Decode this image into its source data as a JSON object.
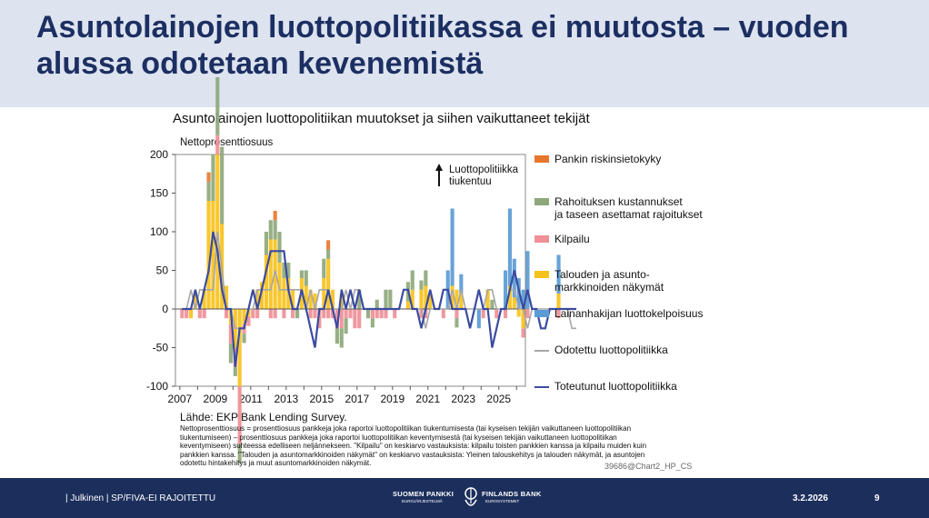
{
  "slide": {
    "title": "Asuntolainojen luottopolitiikassa ei muutosta – vuoden alussa odotetaan kevenemistä"
  },
  "chart_data": {
    "type": "bar",
    "title": "Asuntolainojen luottopolitiikan muutokset ja siihen vaikuttaneet tekijät",
    "ylabel": "Nettoprosenttiosuus",
    "ylim": [
      -100,
      200
    ],
    "yticks": [
      "200",
      "150",
      "100",
      "50",
      "0",
      "-50",
      "-100"
    ],
    "xticks": [
      "2007",
      "2009",
      "2011",
      "2013",
      "2015",
      "2017",
      "2019",
      "2021",
      "2023",
      "2025"
    ],
    "annotation": "Luottopolitiikka\ntiukentuu",
    "legend": [
      {
        "name": "Pankin riskinsietokyky",
        "color": "#e8772e",
        "kind": "bar"
      },
      {
        "name": "Rahoituksen kustannukset\n  ja taseen asettamat rajoitukset",
        "color": "#8ea87b",
        "kind": "bar"
      },
      {
        "name": "Kilpailu",
        "color": "#ef8f97",
        "kind": "bar"
      },
      {
        "name": "Talouden ja asunto-\nmarkkinoiden näkymät",
        "color": "#f8c21c",
        "kind": "bar"
      },
      {
        "name": "Lainanhakijan luottokelpoisuus",
        "color": "#5b9bd5",
        "kind": "bar"
      },
      {
        "name": "Odotettu luottopolitiikka",
        "color": "#a6a6a6",
        "kind": "line"
      },
      {
        "name": "Toteutunut luottopolitiikka",
        "color": "#3a4ba0",
        "kind": "line"
      }
    ],
    "x_start": 2007.0,
    "x_step": 0.25,
    "series": [
      {
        "name": "Talouden ja asunto-markkinoiden näkymät",
        "color": "#f8c21c",
        "values": [
          0,
          0,
          -12,
          20,
          0,
          25,
          140,
          140,
          200,
          110,
          30,
          -20,
          -50,
          -100,
          -20,
          -10,
          0,
          25,
          35,
          70,
          90,
          90,
          60,
          40,
          40,
          25,
          0,
          40,
          30,
          25,
          20,
          0,
          40,
          65,
          25,
          0,
          20,
          0,
          0,
          0,
          0,
          0,
          0,
          0,
          0,
          0,
          0,
          0,
          0,
          0,
          0,
          10,
          25,
          0,
          25,
          30,
          20,
          0,
          0,
          0,
          0,
          30,
          25,
          20,
          0,
          0,
          0,
          0,
          0,
          25,
          0,
          0,
          0,
          0,
          30,
          15,
          -10,
          -25,
          0,
          0,
          0,
          0,
          0,
          0,
          0,
          20,
          0,
          0,
          0,
          0
        ]
      },
      {
        "name": "Kilpailu",
        "color": "#ef8f97",
        "values": [
          -12,
          -12,
          0,
          0,
          -12,
          -12,
          0,
          0,
          25,
          0,
          -12,
          -25,
          -25,
          -75,
          -12,
          -12,
          -12,
          -12,
          0,
          0,
          -12,
          -12,
          0,
          -12,
          0,
          -12,
          0,
          0,
          0,
          -12,
          -12,
          -25,
          -12,
          -12,
          -12,
          -25,
          -25,
          -12,
          -12,
          -25,
          -25,
          0,
          0,
          -12,
          -12,
          -12,
          -12,
          0,
          -12,
          0,
          0,
          0,
          0,
          0,
          -12,
          -12,
          0,
          0,
          0,
          -12,
          0,
          0,
          -12,
          0,
          0,
          0,
          0,
          0,
          -12,
          0,
          0,
          -12,
          0,
          -12,
          0,
          0,
          0,
          -12,
          -12,
          0,
          0,
          0,
          0,
          0,
          0,
          -12,
          0,
          0,
          0,
          0
        ]
      },
      {
        "name": "Rahoituksen kustannukset ja taseen asettamat rajoitukset",
        "color": "#8ea87b",
        "values": [
          0,
          0,
          0,
          0,
          0,
          0,
          25,
          60,
          75,
          100,
          0,
          -25,
          -12,
          -25,
          -12,
          0,
          0,
          0,
          0,
          30,
          25,
          25,
          40,
          20,
          20,
          0,
          -12,
          10,
          20,
          0,
          0,
          0,
          25,
          12,
          0,
          -20,
          -25,
          -20,
          0,
          0,
          25,
          0,
          -12,
          -12,
          12,
          0,
          25,
          25,
          0,
          0,
          0,
          25,
          25,
          0,
          12,
          20,
          0,
          0,
          0,
          0,
          0,
          0,
          -12,
          0,
          0,
          0,
          0,
          0,
          0,
          0,
          12,
          0,
          0,
          0,
          0,
          0,
          0,
          0,
          0,
          0,
          0,
          0,
          0,
          0,
          0,
          0,
          0,
          0,
          0,
          0
        ]
      },
      {
        "name": "Lainanhakijan luottokelpoisuus",
        "color": "#5b9bd5",
        "values": [
          0,
          0,
          0,
          0,
          0,
          0,
          0,
          0,
          0,
          0,
          0,
          0,
          0,
          0,
          0,
          0,
          0,
          0,
          0,
          0,
          0,
          0,
          0,
          0,
          0,
          0,
          0,
          0,
          0,
          0,
          0,
          0,
          0,
          0,
          0,
          0,
          0,
          0,
          0,
          0,
          0,
          0,
          0,
          0,
          0,
          0,
          0,
          0,
          0,
          0,
          0,
          0,
          0,
          0,
          0,
          0,
          0,
          0,
          0,
          0,
          50,
          100,
          0,
          25,
          0,
          0,
          0,
          -25,
          0,
          0,
          0,
          0,
          0,
          50,
          100,
          50,
          40,
          25,
          75,
          0,
          0,
          0,
          0,
          0,
          0,
          50,
          0,
          0,
          0,
          0
        ]
      },
      {
        "name": "Pankin riskinsietokyky",
        "color": "#e8772e",
        "values": [
          0,
          0,
          0,
          0,
          0,
          0,
          12,
          0,
          0,
          0,
          0,
          0,
          0,
          0,
          0,
          0,
          0,
          0,
          0,
          0,
          0,
          12,
          0,
          0,
          0,
          0,
          0,
          0,
          0,
          0,
          0,
          0,
          0,
          12,
          0,
          0,
          0,
          0,
          0,
          0,
          0,
          0,
          0,
          0,
          0,
          0,
          0,
          0,
          0,
          0,
          0,
          0,
          0,
          0,
          0,
          0,
          0,
          0,
          0,
          0,
          0,
          0,
          0,
          0,
          0,
          0,
          0,
          0,
          0,
          0,
          0,
          0,
          0,
          0,
          0,
          0,
          0,
          0,
          0,
          0,
          0,
          0,
          0,
          0,
          0,
          0,
          0,
          0,
          0,
          0
        ]
      },
      {
        "name": "Odotettu luottopolitiikka",
        "color": "#a6a6a6",
        "values": [
          0,
          0,
          25,
          0,
          25,
          25,
          25,
          25,
          100,
          50,
          0,
          0,
          -25,
          -25,
          -25,
          0,
          0,
          25,
          25,
          25,
          25,
          50,
          25,
          25,
          25,
          25,
          25,
          25,
          0,
          25,
          0,
          25,
          25,
          25,
          0,
          0,
          0,
          25,
          0,
          25,
          25,
          0,
          0,
          0,
          0,
          0,
          0,
          0,
          0,
          0,
          25,
          25,
          0,
          0,
          0,
          -25,
          0,
          0,
          0,
          0,
          0,
          25,
          0,
          25,
          0,
          0,
          0,
          0,
          0,
          25,
          25,
          0,
          0,
          0,
          25,
          25,
          0,
          0,
          -25,
          0,
          0,
          0,
          0,
          0,
          0,
          0,
          0,
          0,
          -25,
          -25
        ]
      },
      {
        "name": "Toteutunut luottopolitiikka",
        "color": "#3a4ba0",
        "values": [
          0,
          0,
          0,
          25,
          0,
          25,
          50,
          100,
          75,
          25,
          0,
          0,
          -75,
          -25,
          -25,
          0,
          25,
          0,
          25,
          50,
          75,
          75,
          75,
          75,
          25,
          0,
          0,
          25,
          0,
          -25,
          -50,
          0,
          0,
          25,
          0,
          -25,
          25,
          0,
          25,
          0,
          25,
          0,
          0,
          0,
          0,
          0,
          0,
          0,
          0,
          0,
          25,
          25,
          0,
          0,
          -25,
          0,
          25,
          0,
          0,
          25,
          25,
          0,
          0,
          0,
          0,
          -25,
          0,
          25,
          0,
          0,
          -50,
          -25,
          0,
          0,
          25,
          50,
          25,
          0,
          25,
          0,
          0,
          -25,
          -25,
          0,
          0,
          0,
          0,
          0,
          0,
          0
        ]
      }
    ]
  },
  "source": "Lähde: EKP Bank Lending Survey.",
  "note": "Nettoprosenttiosuus = prosenttiosuus pankkeja joka raportoi luottopolitiikan tiukentumisesta (tai kyseisen tekijän vaikuttaneen luottopolitiikan tiukentumiseen) – prosenttiosuus pankkeja joka raportoi luottopolitiikan keventymisestä (tai kyseisen tekijän vaikuttaneen luottopolitiikan keventymiseen) suhteessa edelliseen neljännekseen. \"Kilpailu\" on keskiarvo vastauksista: kilpailu toisten pankkien kanssa ja kilpailu muiden kuin pankkien kanssa. \"Talouden ja asuntomarkkinoiden näkymät\" on keskiarvo vastauksista: Yleinen talouskehitys ja talouden näkymät, ja asuntojen odotettu hintakehitys ja muut asuntomarkkinoiden näkymät.",
  "chart_code": "39686@Chart2_HP_CS",
  "footer": {
    "classification": "| Julkinen | SP/FIVA-EI RAJOITETTU",
    "date": "3.2.2026",
    "page": "9",
    "logo_left": "SUOMEN PANKKI",
    "logo_left_sub": "EUROJÄRJESTELMÄ",
    "logo_right": "FINLANDS BANK",
    "logo_right_sub": "EUROSYSTEMET"
  }
}
